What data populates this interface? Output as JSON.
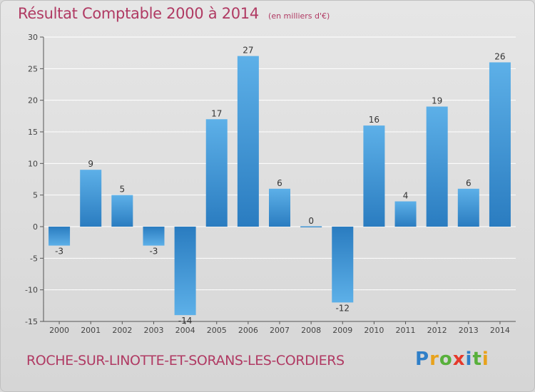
{
  "header": {
    "title": "Résultat Comptable 2000 à 2014",
    "subtitle": "(en milliers d'€)"
  },
  "footer": {
    "commune": "ROCHE-SUR-LINOTTE-ET-SORANS-LES-CORDIERS",
    "logo_letters": [
      "P",
      "r",
      "o",
      "x",
      "i",
      "t",
      "i"
    ]
  },
  "colors": {
    "title": "#b03a63",
    "bar_light": "#5db0e8",
    "bar_dark": "#2a7cc0",
    "grid": "#ffffff"
  },
  "chart_data": {
    "type": "bar",
    "categories": [
      "2000",
      "2001",
      "2002",
      "2003",
      "2004",
      "2005",
      "2006",
      "2007",
      "2008",
      "2009",
      "2010",
      "2011",
      "2012",
      "2013",
      "2014"
    ],
    "values": [
      -3,
      9,
      5,
      -3,
      -14,
      17,
      27,
      6,
      0,
      -12,
      16,
      4,
      19,
      6,
      26
    ],
    "title": "Résultat Comptable 2000 à 2014",
    "subtitle": "(en milliers d'€)",
    "ylim": [
      -15,
      30
    ],
    "yticks": [
      -15,
      -10,
      -5,
      0,
      5,
      10,
      15,
      20,
      25,
      30
    ],
    "grid": true,
    "legend": "none"
  }
}
